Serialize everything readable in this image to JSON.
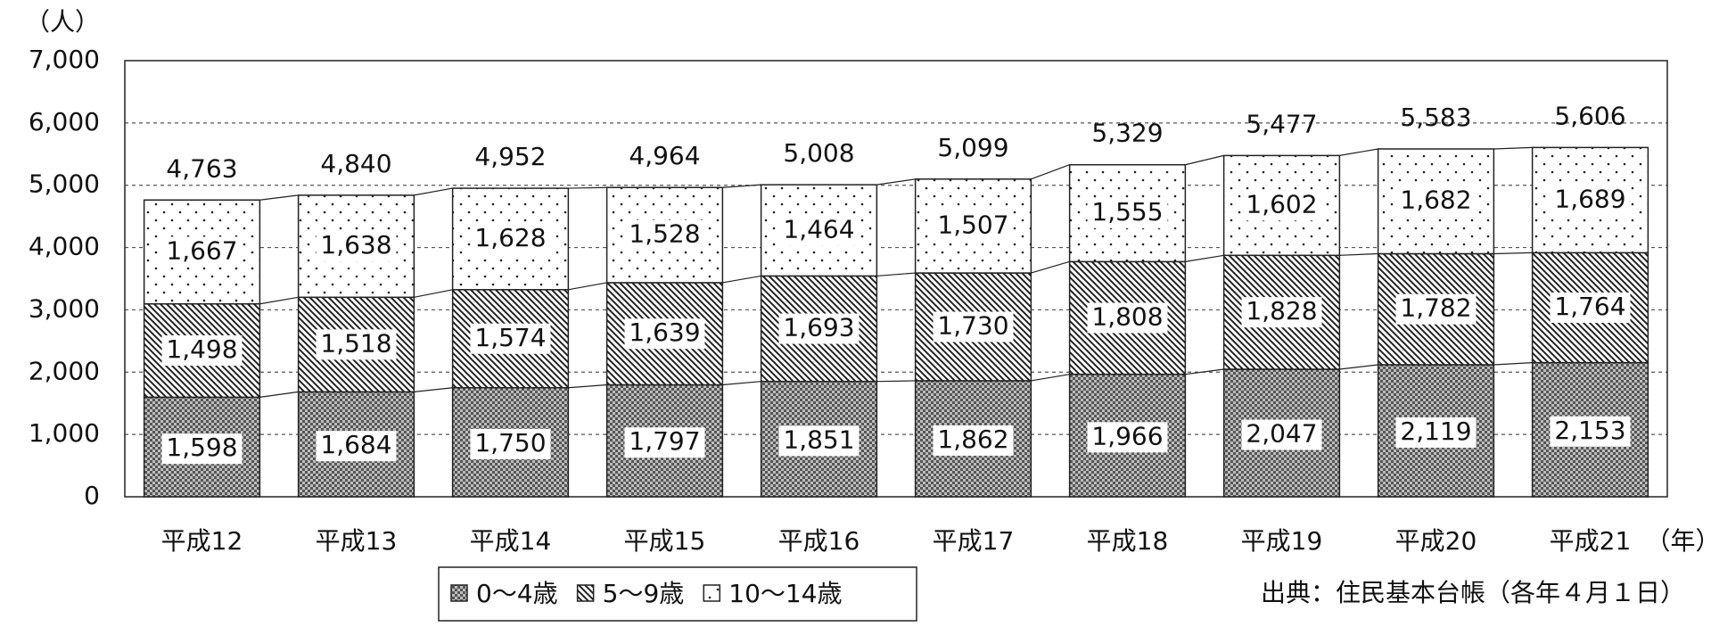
{
  "chart_data": {
    "type": "stacked_bar",
    "y_label": "（人）",
    "x_unit": "（年）",
    "source": "出典：住民基本台帳（各年４月１日）",
    "categories": [
      "平成12",
      "平成13",
      "平成14",
      "平成15",
      "平成16",
      "平成17",
      "平成18",
      "平成19",
      "平成20",
      "平成21"
    ],
    "series": [
      {
        "name": "0〜4歳",
        "color": "#6e6e6e",
        "pattern": "checker",
        "values": [
          1598,
          1684,
          1750,
          1797,
          1851,
          1862,
          1966,
          2047,
          2119,
          2153
        ],
        "value_labels": [
          "1,598",
          "1,684",
          "1,750",
          "1,797",
          "1,851",
          "1,862",
          "1,966",
          "2,047",
          "2,119",
          "2,153"
        ]
      },
      {
        "name": "5〜9歳",
        "color": "#333333",
        "pattern": "hatch",
        "values": [
          1498,
          1518,
          1574,
          1639,
          1693,
          1730,
          1808,
          1828,
          1782,
          1764
        ],
        "value_labels": [
          "1,498",
          "1,518",
          "1,574",
          "1,639",
          "1,693",
          "1,730",
          "1,808",
          "1,828",
          "1,782",
          "1,764"
        ]
      },
      {
        "name": "10〜14歳",
        "color": "#333333",
        "pattern": "dots",
        "values": [
          1667,
          1638,
          1628,
          1528,
          1464,
          1507,
          1555,
          1602,
          1682,
          1689
        ],
        "value_labels": [
          "1,667",
          "1,638",
          "1,628",
          "1,528",
          "1,464",
          "1,507",
          "1,555",
          "1,602",
          "1,682",
          "1,689"
        ]
      }
    ],
    "totals": {
      "values": [
        4763,
        4840,
        4952,
        4964,
        5008,
        5099,
        5329,
        5477,
        5583,
        5606
      ],
      "value_labels": [
        "4,763",
        "4,840",
        "4,952",
        "4,964",
        "5,008",
        "5,099",
        "5,329",
        "5,477",
        "5,583",
        "5,606"
      ]
    },
    "ylim": [
      0,
      7000
    ],
    "yticks": [
      0,
      {
        "value": 1000,
        "label": "1,000"
      },
      {
        "value": 2000,
        "label": "2,000"
      },
      {
        "value": 3000,
        "label": "3,000"
      },
      {
        "value": 4000,
        "label": "4,000"
      },
      {
        "value": 5000,
        "label": "5,000"
      },
      {
        "value": 6000,
        "label": "6,000"
      },
      {
        "value": 7000,
        "label": "7,000"
      }
    ],
    "grid": true
  }
}
